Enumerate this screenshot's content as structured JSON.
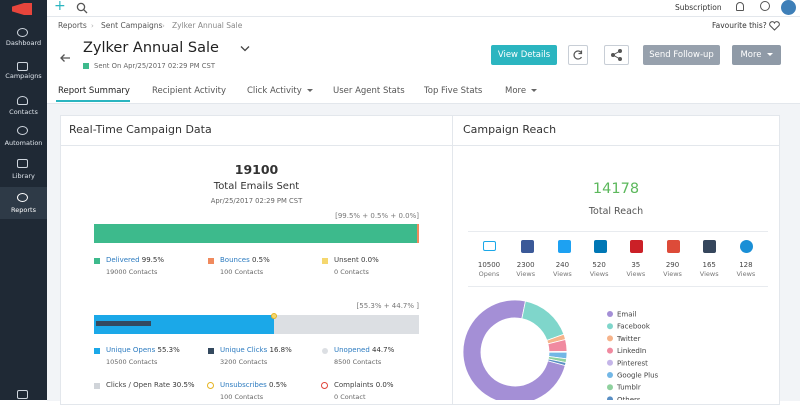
{
  "sidebar": {
    "items": [
      "Dashboard",
      "Campaigns",
      "Contacts",
      "Automation",
      "Library",
      "Reports"
    ]
  },
  "topbar": {
    "subscription": "Subscription"
  },
  "breadcrumb": [
    "Reports",
    "Sent Campaigns",
    "Zylker Annual Sale"
  ],
  "favourite": "Favourite this?",
  "title": "Zylker Annual Sale",
  "sent_on": "Sent On Apr/25/2017 02:29 PM CST",
  "buttons": [
    "View Details",
    "Send Follow-up",
    "More"
  ],
  "tabs": [
    "Report Summary",
    "Recipient Activity",
    "Click Activity",
    "User Agent Stats",
    "Top Five Stats",
    "More"
  ],
  "campaign_data": {
    "title": "Real-Time Campaign Data",
    "total": 19100,
    "total_label": "Total Emails Sent",
    "date": "Apr/25/2017 02:29 PM CST",
    "delivery_summary": "[99.5% + 0.5% + 0.0%]",
    "delivery": [
      {
        "name": "Delivered",
        "percent": {
          "value": 99.5,
          "label": "99.5%"
        },
        "count": "19000 Contacts",
        "color": "#3dba8c"
      },
      {
        "name": "Bounces",
        "percent": {
          "value": 0.5,
          "label": "0.5%"
        },
        "count": "100 Contacts",
        "color": "#f08a5d"
      },
      {
        "name": "Unsent",
        "percent": {
          "value": 0,
          "label": "0.0%"
        },
        "count": "0 Contacts",
        "color": "#f5d76e"
      }
    ],
    "open_summary": "[55.3% + 44.7% ]",
    "opens": [
      {
        "name": "Unique Opens",
        "percent": {
          "value": 55.3,
          "label": "55.3%"
        },
        "count": "10500 Contacts",
        "color": "#1ba8e8"
      },
      {
        "name": "Unique Clicks",
        "percent": {
          "value": 16.8,
          "label": "16.8%"
        },
        "count": "3200 Contacts",
        "color": "#34495e"
      },
      {
        "name": "Unopened",
        "percent": {
          "value": 44.7,
          "label": "44.7%"
        },
        "count": "8500 Contacts",
        "color": "#dcdfe3"
      }
    ],
    "other": [
      {
        "name": "Clicks / Open Rate",
        "percent": {
          "value": 30.5,
          "label": "30.5%"
        }
      },
      {
        "name": "Unsubscribes",
        "percent": {
          "value": 0.5,
          "label": "0.5%"
        },
        "count": "100 Contacts"
      },
      {
        "name": "Complaints",
        "percent": {
          "value": 0,
          "label": "0.0%"
        },
        "count": "0 Contact"
      }
    ]
  },
  "reach": {
    "title": "Campaign Reach",
    "total": 14178,
    "total_label": "Total Reach",
    "channels": [
      {
        "name": "Email",
        "count": 10500,
        "unit": "Opens",
        "color": "#a48fd6"
      },
      {
        "name": "Facebook",
        "count": 2300,
        "unit": "Views",
        "color": "#7fd6cb"
      },
      {
        "name": "Twitter",
        "count": 240,
        "unit": "Views",
        "color": "#f6b38a"
      },
      {
        "name": "LinkedIn",
        "count": 520,
        "unit": "Views",
        "color": "#f08aa0"
      },
      {
        "name": "Pinterest",
        "count": 35,
        "unit": "Views",
        "color": "#c4b5e8"
      },
      {
        "name": "Google Plus",
        "count": 290,
        "unit": "Views",
        "color": "#73b7e6"
      },
      {
        "name": "Tumblr",
        "count": 165,
        "unit": "Views",
        "color": "#8fd19e"
      },
      {
        "name": "Others",
        "count": 128,
        "unit": "Views",
        "color": "#5a8fc4"
      }
    ]
  }
}
